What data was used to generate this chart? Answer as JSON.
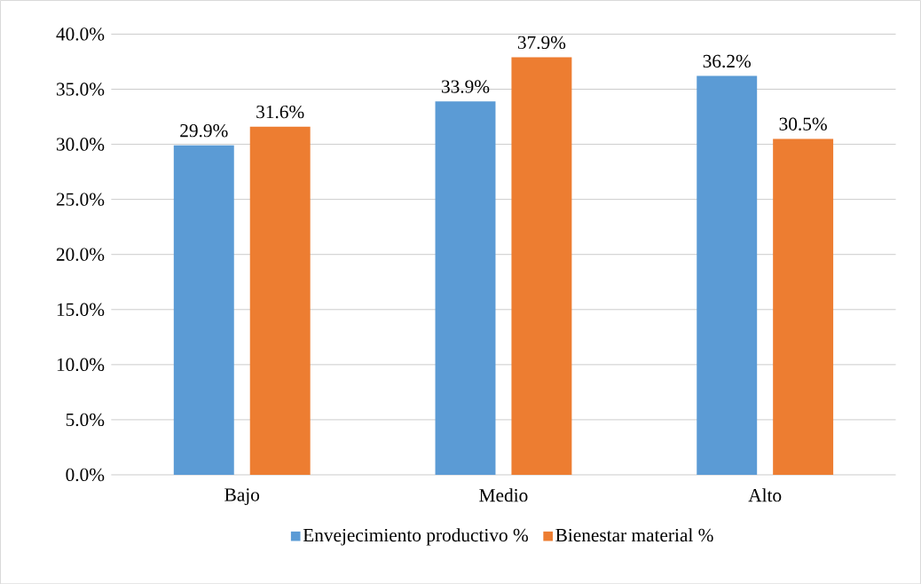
{
  "chart_data": {
    "type": "bar",
    "categories": [
      "Bajo",
      "Medio",
      "Alto"
    ],
    "series": [
      {
        "name": "Envejecimiento productivo %",
        "color": "#5b9bd5",
        "values": [
          29.9,
          33.9,
          36.2
        ],
        "value_labels": [
          "29.9%",
          "33.9%",
          "36.2%"
        ]
      },
      {
        "name": "Bienestar material %",
        "color": "#ed7d31",
        "values": [
          31.6,
          37.9,
          30.5
        ],
        "value_labels": [
          "31.6%",
          "37.9%",
          "30.5%"
        ]
      }
    ],
    "ylim": [
      0,
      40
    ],
    "yticks": [
      {
        "value": 0,
        "label": "0.0%"
      },
      {
        "value": 5,
        "label": "5.0%"
      },
      {
        "value": 10,
        "label": "10.0%"
      },
      {
        "value": 15,
        "label": "15.0%"
      },
      {
        "value": 20,
        "label": "20.0%"
      },
      {
        "value": 25,
        "label": "25.0%"
      },
      {
        "value": 30,
        "label": "30.0%"
      },
      {
        "value": 35,
        "label": "35.0%"
      },
      {
        "value": 40,
        "label": "40.0%"
      }
    ],
    "grid": "y",
    "legend": "bottom"
  }
}
